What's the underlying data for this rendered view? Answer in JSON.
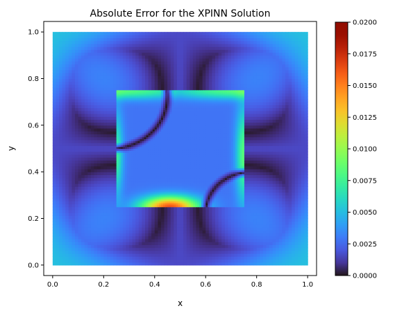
{
  "chart_data": {
    "type": "heatmap",
    "title": "Absolute Error for the XPINN Solution",
    "xlabel": "x",
    "ylabel": "y",
    "xlim": [
      -0.035,
      1.035
    ],
    "ylim": [
      -0.045,
      1.045
    ],
    "xticks": [
      "0.0",
      "0.2",
      "0.4",
      "0.6",
      "0.8",
      "1.0"
    ],
    "yticks": [
      "0.0",
      "0.2",
      "0.4",
      "0.6",
      "0.8",
      "1.0"
    ],
    "grid": false,
    "colormap": "turbo",
    "colorbar": {
      "range": [
        0.0,
        0.02
      ],
      "ticks": [
        "0.0000",
        "0.0025",
        "0.0050",
        "0.0075",
        "0.0100",
        "0.0125",
        "0.0150",
        "0.0175",
        "0.0200"
      ]
    },
    "subdomains": [
      {
        "role": "outer",
        "x_range": [
          0.0,
          1.0
        ],
        "y_range": [
          0.0,
          1.0
        ],
        "error_range": [
          0.0,
          0.0065
        ]
      },
      {
        "role": "inner",
        "x_range": [
          0.25,
          0.75
        ],
        "y_range": [
          0.25,
          0.75
        ],
        "error_range": [
          0.0,
          0.0165
        ]
      }
    ]
  }
}
